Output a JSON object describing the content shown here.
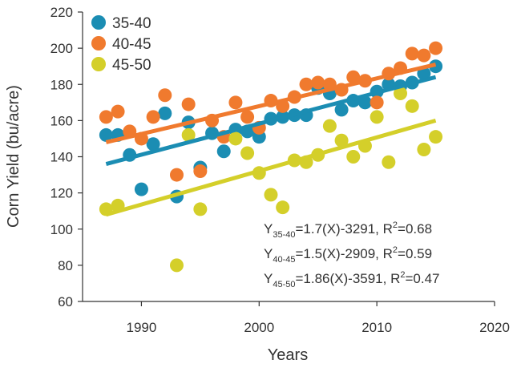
{
  "chart_data": {
    "type": "scatter",
    "xlabel": "Years",
    "ylabel": "Corn Yield (bu/acre)",
    "xlim": [
      1985,
      2020
    ],
    "ylim": [
      60,
      220
    ],
    "xticks": [
      1990,
      2000,
      2010,
      2020
    ],
    "yticks": [
      60,
      80,
      100,
      120,
      140,
      160,
      180,
      200,
      220
    ],
    "grid": false,
    "legend_position": "top-left",
    "series": [
      {
        "name": "35-40",
        "color": "#1b8db3",
        "points": [
          [
            1987,
            152
          ],
          [
            1988,
            152
          ],
          [
            1989,
            141
          ],
          [
            1990,
            122
          ],
          [
            1991,
            147
          ],
          [
            1992,
            164
          ],
          [
            1993,
            118
          ],
          [
            1994,
            159
          ],
          [
            1995,
            134
          ],
          [
            1996,
            153
          ],
          [
            1997,
            143
          ],
          [
            1998,
            155
          ],
          [
            1999,
            154
          ],
          [
            2000,
            151
          ],
          [
            2001,
            161
          ],
          [
            2002,
            162
          ],
          [
            2003,
            163
          ],
          [
            2004,
            163
          ],
          [
            2005,
            178
          ],
          [
            2006,
            175
          ],
          [
            2007,
            166
          ],
          [
            2008,
            171
          ],
          [
            2009,
            170
          ],
          [
            2010,
            176
          ],
          [
            2011,
            180
          ],
          [
            2012,
            179
          ],
          [
            2013,
            181
          ],
          [
            2014,
            186
          ],
          [
            2015,
            190
          ]
        ],
        "trend": {
          "x": [
            1987,
            2015
          ],
          "y": [
            136,
            184
          ]
        },
        "equation": {
          "y_sub": "35-40",
          "formula": "=1.7(X)-3291, R",
          "r2": "=0.68"
        }
      },
      {
        "name": "40-45",
        "color": "#f07a2e",
        "points": [
          [
            1987,
            162
          ],
          [
            1988,
            165
          ],
          [
            1989,
            154
          ],
          [
            1990,
            150
          ],
          [
            1991,
            162
          ],
          [
            1992,
            174
          ],
          [
            1993,
            130
          ],
          [
            1994,
            169
          ],
          [
            1995,
            132
          ],
          [
            1996,
            160
          ],
          [
            1997,
            151
          ],
          [
            1998,
            170
          ],
          [
            1999,
            162
          ],
          [
            2000,
            156
          ],
          [
            2001,
            171
          ],
          [
            2002,
            168
          ],
          [
            2003,
            173
          ],
          [
            2004,
            180
          ],
          [
            2005,
            181
          ],
          [
            2006,
            180
          ],
          [
            2007,
            177
          ],
          [
            2008,
            184
          ],
          [
            2009,
            182
          ],
          [
            2010,
            170
          ],
          [
            2011,
            186
          ],
          [
            2012,
            189
          ],
          [
            2013,
            197
          ],
          [
            2014,
            196
          ],
          [
            2015,
            200
          ]
        ],
        "trend": {
          "x": [
            1987,
            2015
          ],
          "y": [
            148,
            191
          ]
        },
        "equation": {
          "y_sub": "40-45",
          "formula": "=1.5(X)-2909, R",
          "r2": "=0.59"
        }
      },
      {
        "name": "45-50",
        "color": "#d4cf2a",
        "points": [
          [
            1987,
            111
          ],
          [
            1988,
            113
          ],
          [
            1993,
            80
          ],
          [
            1994,
            152
          ],
          [
            1995,
            111
          ],
          [
            1998,
            150
          ],
          [
            1999,
            142
          ],
          [
            2000,
            131
          ],
          [
            2001,
            119
          ],
          [
            2002,
            112
          ],
          [
            2003,
            138
          ],
          [
            2004,
            137
          ],
          [
            2005,
            141
          ],
          [
            2006,
            157
          ],
          [
            2007,
            149
          ],
          [
            2008,
            140
          ],
          [
            2009,
            146
          ],
          [
            2010,
            162
          ],
          [
            2011,
            137
          ],
          [
            2012,
            175
          ],
          [
            2013,
            168
          ],
          [
            2014,
            144
          ],
          [
            2015,
            151
          ]
        ],
        "trend": {
          "x": [
            1987,
            2015
          ],
          "y": [
            108,
            160
          ]
        },
        "equation": {
          "y_sub": "45-50",
          "formula": "=1.86(X)-3591, R",
          "r2": "=0.47"
        }
      }
    ]
  }
}
